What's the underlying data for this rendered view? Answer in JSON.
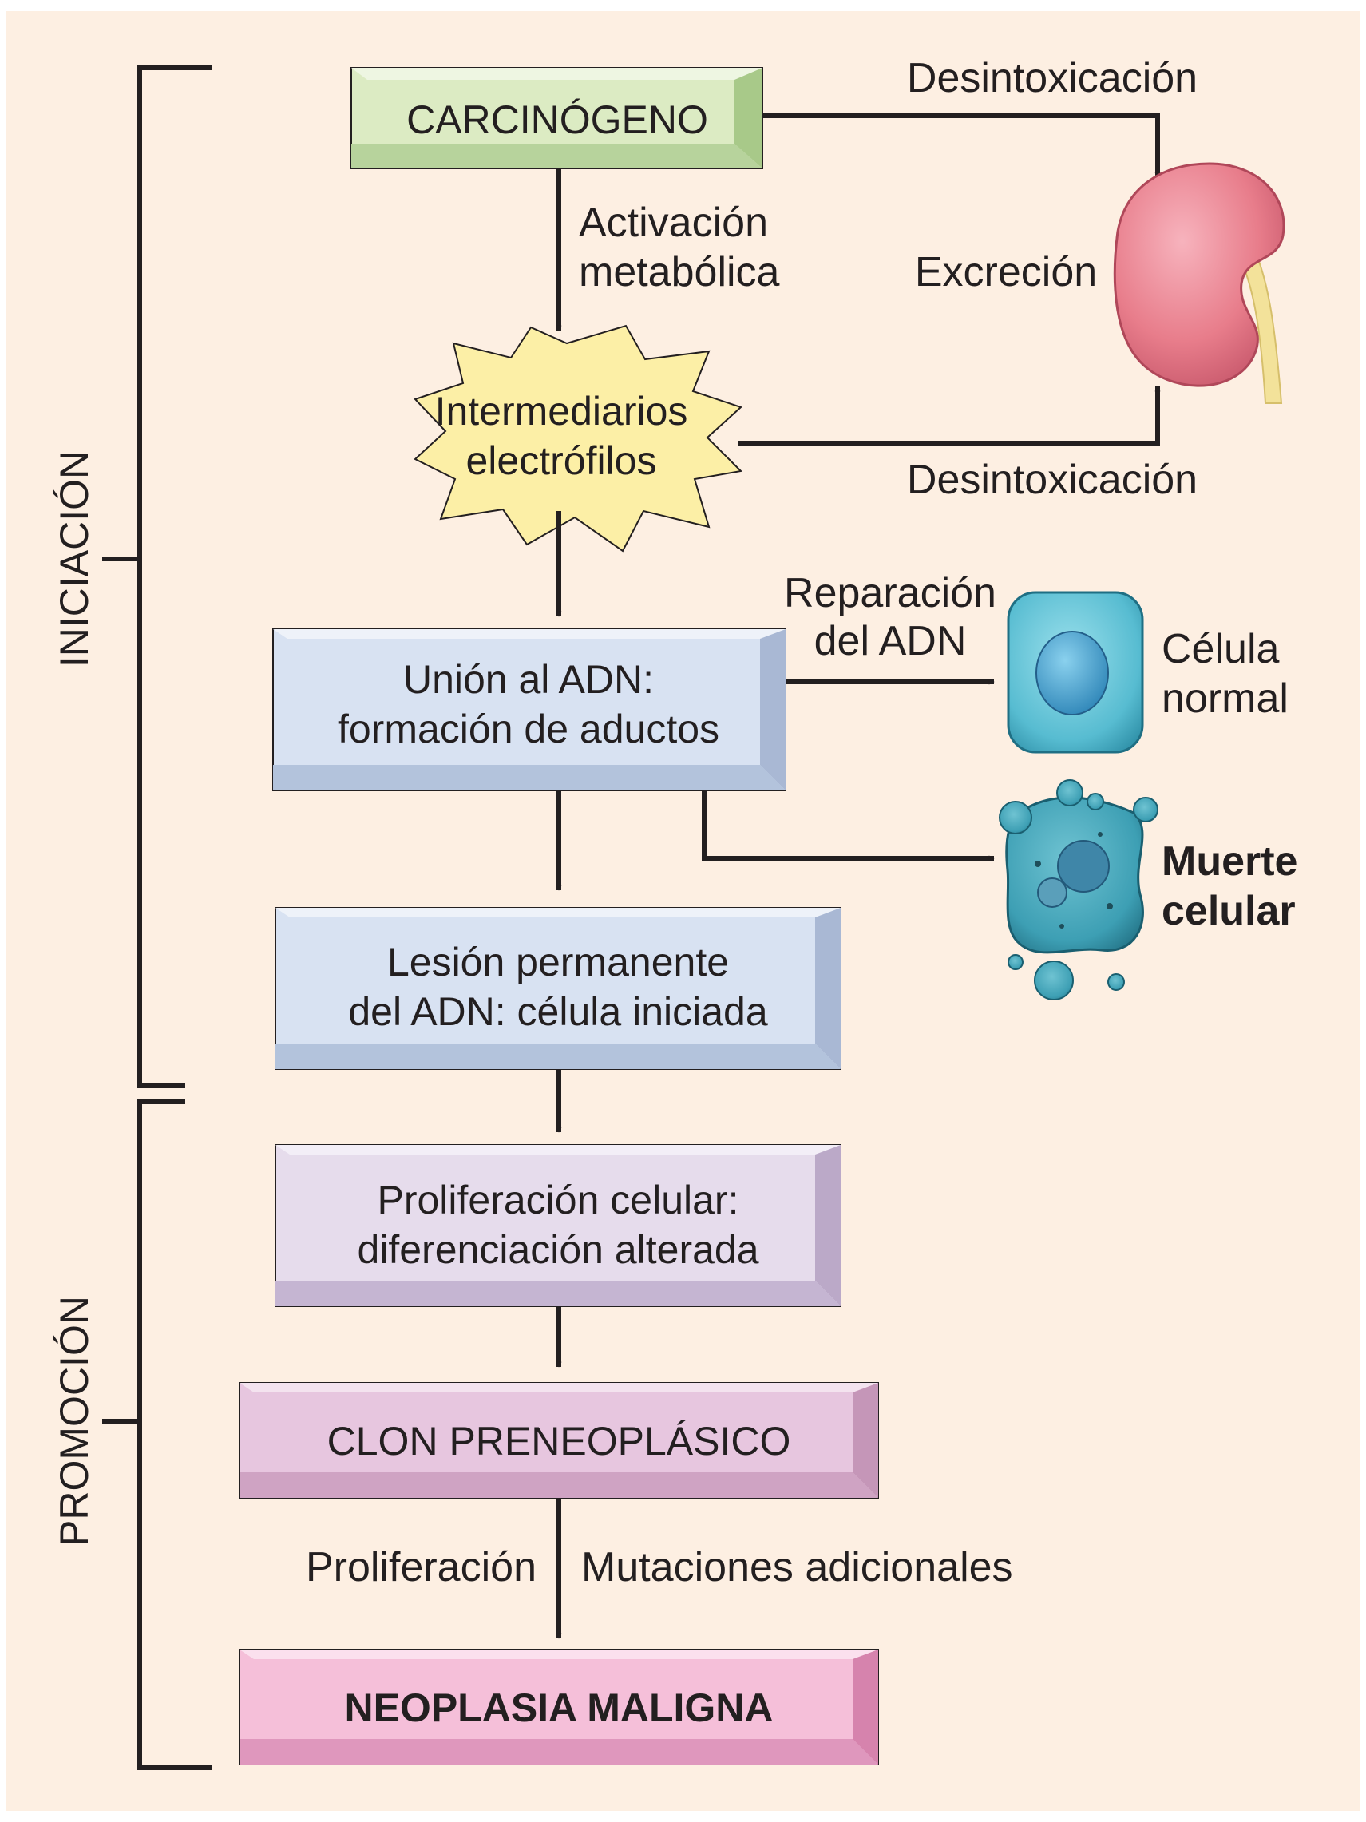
{
  "phases": {
    "initiation": "INICIACIÓN",
    "promotion": "PROMOCIÓN"
  },
  "nodes": {
    "carcinogen": "CARCINÓGENO",
    "intermediates": [
      "Intermediarios",
      "electrófilos"
    ],
    "dna_binding": [
      "Unión al ADN:",
      "formación de aductos"
    ],
    "permanent_lesion": [
      "Lesión permanente",
      "del ADN: célula iniciada"
    ],
    "proliferation": [
      "Proliferación celular:",
      "diferenciación alterada"
    ],
    "preneoplastic": "CLON PRENEOPLÁSICO",
    "malignant": "NEOPLASIA MALIGNA"
  },
  "edge_labels": {
    "detox_top": "Desintoxicación",
    "metabolic_activation": [
      "Activación",
      "metabólica"
    ],
    "excretion": "Excreción",
    "detox_bottom": "Desintoxicación",
    "dna_repair": [
      "Reparación",
      "del ADN"
    ],
    "proliferation": "Proliferación",
    "additional_mutations": "Mutaciones adicionales"
  },
  "outcomes": {
    "normal_cell": [
      "Célula",
      "normal"
    ],
    "cell_death": [
      "Muerte",
      "celular"
    ]
  },
  "colors": {
    "background": "#fdefe2",
    "carcinogen_fill": "#dcebc3",
    "star_fill": "#fcefa6",
    "dna_box_fill": "#d8e2f2",
    "proliferation_fill": "#e6dcec",
    "preneoplastic_fill": "#e7c6df",
    "malignant_fill": "#f5bfd9",
    "kidney": "#e87d8b",
    "cell": "#5fbfd3"
  }
}
